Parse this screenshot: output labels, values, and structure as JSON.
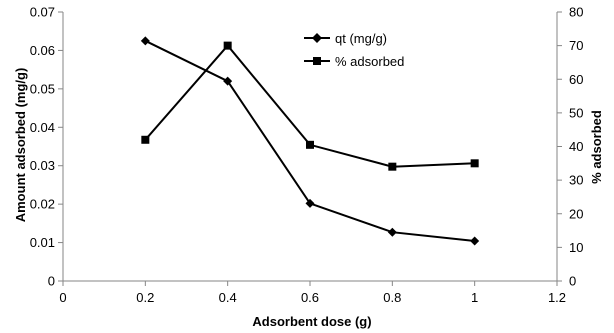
{
  "chart_data": {
    "type": "line",
    "xlabel": "Adsorbent dose (g)",
    "ylabel_left": "Amount adsorbed (mg/g)",
    "ylabel_right": "% adsorbed",
    "xlim": [
      0,
      1.2
    ],
    "x_ticks": [
      "0",
      "0.2",
      "0.4",
      "0.6",
      "0.8",
      "1",
      "1.2"
    ],
    "ylim_left": [
      0,
      0.07
    ],
    "y_left_ticks": [
      "0",
      "0.01",
      "0.02",
      "0.03",
      "0.04",
      "0.05",
      "0.06",
      "0.07"
    ],
    "ylim_right": [
      0,
      80
    ],
    "y_right_ticks": [
      "0",
      "10",
      "20",
      "30",
      "40",
      "50",
      "60",
      "70",
      "80"
    ],
    "grid": false,
    "legend_position": "top-right",
    "series": [
      {
        "name": "qt (mg/g)",
        "axis": "left",
        "marker": "diamond",
        "color": "#000000",
        "x": [
          0.2,
          0.4,
          0.6,
          0.8,
          1.0
        ],
        "y": [
          0.0625,
          0.052,
          0.0202,
          0.0127,
          0.0104
        ]
      },
      {
        "name": "% adsorbed",
        "axis": "right",
        "marker": "square",
        "color": "#000000",
        "x": [
          0.2,
          0.4,
          0.6,
          0.8,
          1.0
        ],
        "y": [
          42,
          70,
          40.5,
          34,
          35
        ]
      }
    ]
  }
}
